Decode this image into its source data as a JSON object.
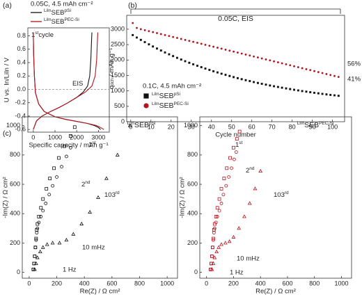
{
  "chart_data": [
    {
      "type": "line",
      "panel": "(a)",
      "title": "0.05C, 4.5 mAh cm⁻²",
      "xlabel": "Specific capacity / mAh g⁻¹",
      "ylabel": "U vs. In/LiIn / V",
      "xlim": [
        -250,
        3500
      ],
      "ylim": [
        -0.64,
        0.92
      ],
      "xticks": [
        0,
        1000,
        2000,
        3000
      ],
      "yticks": [
        -0.6,
        -0.4,
        -0.2,
        {
          "value": 0,
          "label": "0.0"
        },
        0.2,
        0.4,
        0.6,
        0.8
      ],
      "hline": 0,
      "annotation": "EIS",
      "cycle_label": {
        "number": "1",
        "suffix": "st",
        "text": "cycle"
      },
      "series": [
        {
          "name_prefix": "LiIn",
          "name": "SEB",
          "name_suffix": "pSi",
          "color": "#111111",
          "x": [
            0,
            20,
            50,
            100,
            250,
            500,
            1000,
            1500,
            2000,
            2500,
            2800,
            3000,
            3100,
            null,
            0,
            150,
            400,
            800,
            1200,
            1600,
            2000,
            2300,
            2500,
            2600,
            2650,
            2680,
            2700
          ],
          "values": [
            0.85,
            0.5,
            0.2,
            -0.05,
            -0.22,
            -0.33,
            -0.41,
            -0.45,
            -0.48,
            -0.51,
            -0.54,
            -0.57,
            -0.6,
            null,
            -0.6,
            -0.47,
            -0.4,
            -0.33,
            -0.27,
            -0.2,
            -0.12,
            -0.04,
            0.05,
            0.2,
            0.45,
            0.7,
            0.85
          ]
        },
        {
          "name_prefix": "LiIn",
          "name": "SEB",
          "name_suffix": "PEC-Si",
          "color": "#b5121b",
          "x": [
            0,
            20,
            50,
            100,
            250,
            500,
            1000,
            1500,
            2000,
            2500,
            2900,
            3100,
            3250,
            null,
            0,
            150,
            400,
            800,
            1200,
            1600,
            2000,
            2400,
            2700,
            2850,
            2920,
            2950,
            2970
          ],
          "values": [
            0.85,
            0.5,
            0.2,
            -0.05,
            -0.22,
            -0.33,
            -0.41,
            -0.45,
            -0.48,
            -0.51,
            -0.54,
            -0.57,
            -0.6,
            null,
            -0.6,
            -0.47,
            -0.4,
            -0.33,
            -0.27,
            -0.2,
            -0.12,
            -0.04,
            0.05,
            0.2,
            0.45,
            0.7,
            0.85
          ]
        }
      ]
    },
    {
      "type": "scatter",
      "panel": "(b)",
      "rate_label": "0.05C, EIS",
      "legend_title": "0.1C, 4.5 mAh cm⁻²",
      "xlabel": "Cycle number",
      "ylabel": "q",
      "ylabel_sub": "dch",
      "ylabel_unit": " / mAh g⁻¹",
      "xlim": [
        -2,
        106
      ],
      "ylim": [
        0,
        3450
      ],
      "xticks": [
        0,
        10,
        20,
        30,
        40,
        50,
        60,
        70,
        80,
        90,
        100
      ],
      "yticks": [
        0,
        500,
        1000,
        1500,
        2000,
        2500,
        3000
      ],
      "annotations": [
        "56%",
        "41%"
      ],
      "series": [
        {
          "name_prefix": "LiIn",
          "name": "SEB",
          "name_suffix": "pSi",
          "color": "#111111",
          "marker": "square",
          "x": [
            1,
            3,
            5,
            7,
            9,
            11,
            13,
            15,
            17,
            19,
            21,
            23,
            25,
            27,
            29,
            31,
            33,
            35,
            37,
            39,
            41,
            43,
            45,
            47,
            49,
            51,
            53,
            55,
            57,
            59,
            61,
            63,
            65,
            67,
            69,
            71,
            73,
            75,
            77,
            79,
            81,
            83,
            85,
            87,
            89,
            91,
            93,
            95,
            97,
            99,
            101,
            103
          ],
          "values": [
            2810,
            2730,
            2654,
            2580,
            2509,
            2440,
            2373,
            2308,
            2246,
            2185,
            2127,
            2070,
            2015,
            1962,
            1911,
            1861,
            1813,
            1767,
            1722,
            1679,
            1637,
            1597,
            1557,
            1519,
            1483,
            1447,
            1413,
            1380,
            1347,
            1317,
            1286,
            1257,
            1229,
            1202,
            1176,
            1150,
            1126,
            1102,
            1079,
            1057,
            1035,
            1014,
            994,
            975,
            956,
            938,
            920,
            903,
            886,
            870,
            855,
            840
          ]
        },
        {
          "name_prefix": "LiIn",
          "name": "SEB",
          "name_suffix": "PEC-Si",
          "color": "#b5121b",
          "marker": "circle",
          "x": [
            1,
            3,
            5,
            7,
            9,
            11,
            13,
            15,
            17,
            19,
            21,
            23,
            25,
            27,
            29,
            31,
            33,
            35,
            37,
            39,
            41,
            43,
            45,
            47,
            49,
            51,
            53,
            55,
            57,
            59,
            61,
            63,
            65,
            67,
            69,
            71,
            73,
            75,
            77,
            79,
            81,
            83,
            85,
            87,
            89,
            91,
            93,
            95,
            97,
            99,
            101,
            103
          ],
          "values": [
            3200,
            3040,
            3000,
            2968,
            2937,
            2905,
            2874,
            2842,
            2810,
            2779,
            2747,
            2716,
            2684,
            2652,
            2621,
            2589,
            2558,
            2526,
            2494,
            2463,
            2431,
            2400,
            2368,
            2336,
            2305,
            2273,
            2242,
            2210,
            2178,
            2147,
            2115,
            2084,
            2052,
            2020,
            1989,
            1957,
            1926,
            1894,
            1862,
            1831,
            1799,
            1768,
            1736,
            1704,
            1673,
            1641,
            1610,
            1578,
            1546,
            1515,
            1483,
            1452
          ]
        }
      ]
    },
    {
      "type": "scatter",
      "panel": "(c)",
      "title_prefix": "LiIn",
      "title": "SEB",
      "title_suffix": "pSi",
      "xlabel": "Re(Z) / Ω cm²",
      "ylabel": "-Im(Z) / Ω cm²",
      "xlim": [
        -50,
        1075
      ],
      "ylim": [
        -40,
        1060
      ],
      "xticks": [
        0,
        200,
        400,
        600,
        800,
        1000
      ],
      "yticks": [
        0,
        200,
        400,
        600,
        800,
        1000
      ],
      "annotations": [
        "10 mHz",
        "1 Hz"
      ],
      "series": [
        {
          "name": "1",
          "name_suffix": "st",
          "color": "#111111",
          "marker": "square",
          "x": [
            30,
            35,
            40,
            45,
            50,
            55,
            60,
            70,
            85,
            100,
            125,
            150,
            180,
            215,
            255,
            300,
            330
          ],
          "values": [
            20,
            60,
            110,
            170,
            230,
            290,
            330,
            380,
            440,
            500,
            570,
            640,
            710,
            780,
            860,
            930,
            990
          ]
        },
        {
          "name": "2",
          "name_suffix": "nd",
          "color": "#111111",
          "marker": "circle",
          "x": [
            30,
            35,
            40,
            45,
            50,
            55,
            60,
            70,
            85,
            100,
            120,
            145,
            170,
            200,
            235,
            270,
            300
          ],
          "values": [
            20,
            60,
            110,
            170,
            220,
            270,
            300,
            340,
            380,
            420,
            470,
            530,
            590,
            650,
            720,
            790,
            850
          ]
        },
        {
          "name": "103",
          "name_suffix": "rd",
          "color": "#111111",
          "marker": "triangle",
          "x": [
            40,
            50,
            60,
            80,
            100,
            130,
            170,
            220,
            270,
            320,
            380,
            440,
            500,
            560,
            640,
            730
          ],
          "values": [
            20,
            60,
            100,
            140,
            170,
            190,
            200,
            200,
            220,
            260,
            330,
            410,
            510,
            640,
            800,
            1000
          ]
        }
      ]
    },
    {
      "type": "scatter",
      "title_prefix": "LiIn",
      "title": "SEB",
      "title_suffix": "PEC-Si",
      "xlabel": "Re(Z) / Ω cm²",
      "ylabel": "-Im(Z) / Ω cm²",
      "xlim": [
        -50,
        1075
      ],
      "ylim": [
        -40,
        1060
      ],
      "xticks": [
        0,
        200,
        400,
        600,
        800,
        1000
      ],
      "yticks": [
        0,
        200,
        400,
        600,
        800,
        1000
      ],
      "annotations": [
        "10 mHz",
        "1 Hz"
      ],
      "series": [
        {
          "name": "1",
          "name_suffix": "st",
          "color": "#b5121b",
          "marker": "square",
          "x": [
            30,
            35,
            40,
            45,
            50,
            55,
            60,
            70,
            80,
            95,
            110,
            130,
            150,
            175,
            200,
            225,
            245
          ],
          "values": [
            20,
            60,
            110,
            170,
            230,
            290,
            330,
            380,
            440,
            500,
            570,
            640,
            710,
            780,
            850,
            910,
            960
          ]
        },
        {
          "name": "2",
          "name_suffix": "nd",
          "color": "#b5121b",
          "marker": "circle",
          "x": [
            30,
            35,
            40,
            45,
            50,
            55,
            60,
            70,
            80,
            95,
            110,
            125,
            145,
            165,
            185,
            205,
            220
          ],
          "values": [
            20,
            60,
            110,
            170,
            220,
            270,
            300,
            340,
            380,
            420,
            470,
            530,
            590,
            650,
            710,
            770,
            820
          ]
        },
        {
          "name": "103",
          "name_suffix": "rd",
          "color": "#b5121b",
          "marker": "triangle",
          "x": [
            40,
            50,
            60,
            75,
            90,
            110,
            140,
            170,
            200,
            240,
            280,
            320,
            360,
            400
          ],
          "values": [
            20,
            60,
            100,
            140,
            170,
            190,
            200,
            210,
            240,
            300,
            380,
            470,
            570,
            690
          ]
        }
      ]
    }
  ]
}
